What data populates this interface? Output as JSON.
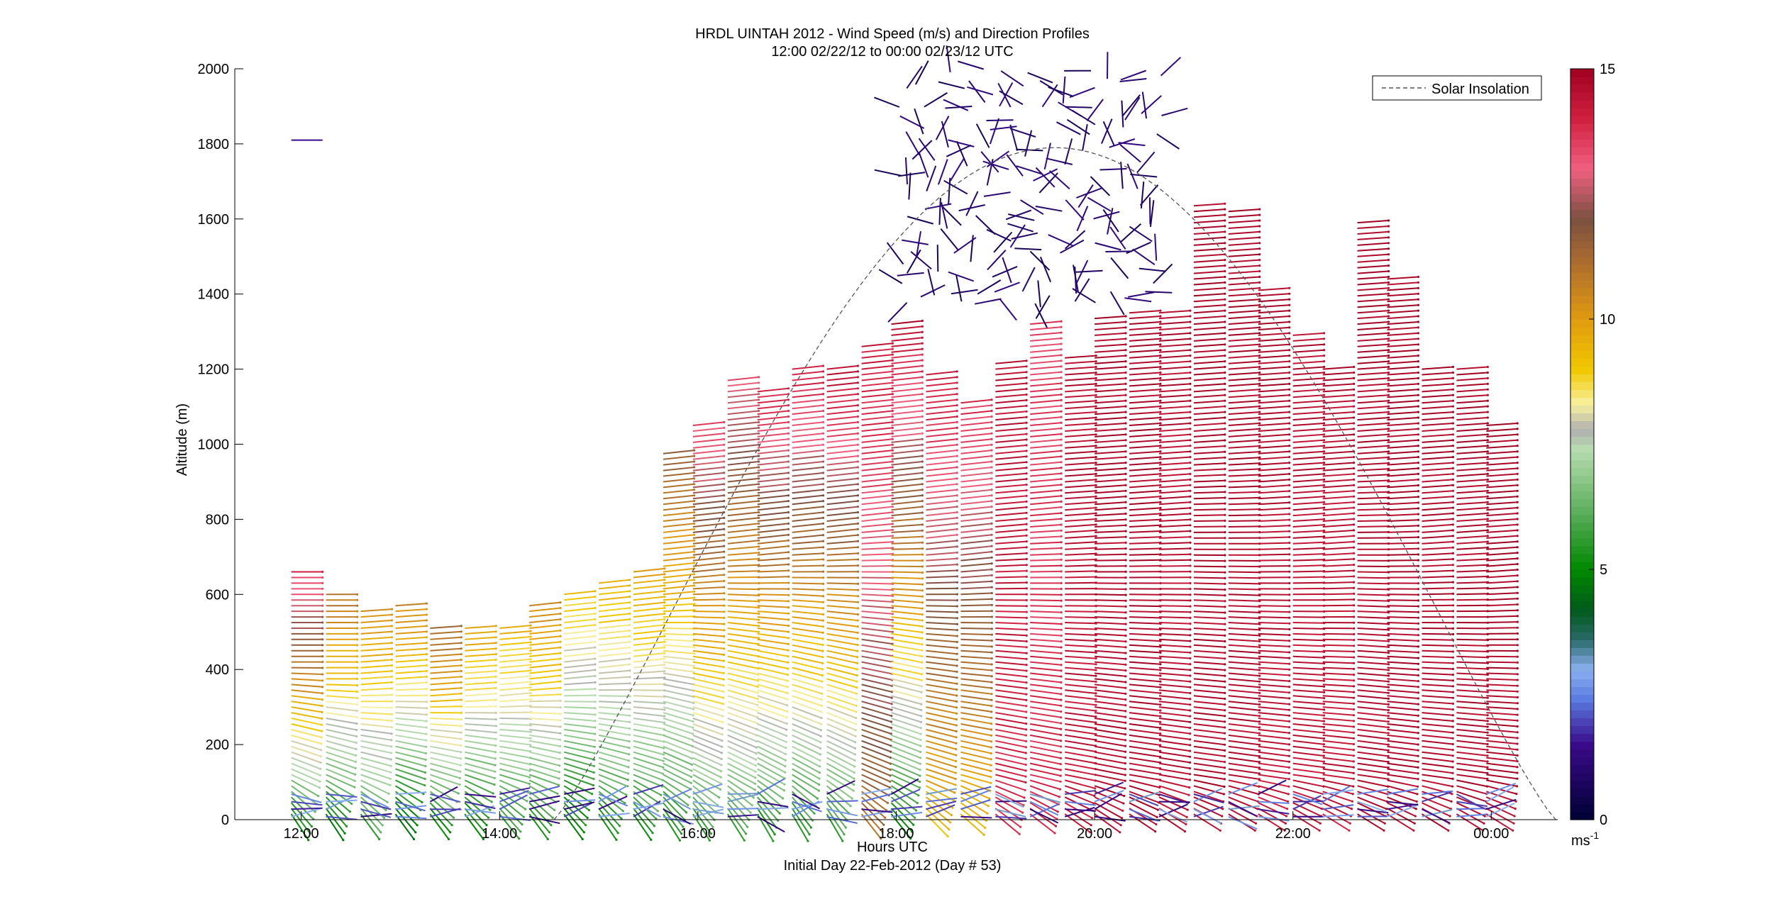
{
  "chart_data": {
    "type": "wind-barb-profile",
    "title": "HRDL UINTAH 2012 - Wind Speed (m/s) and Direction Profiles",
    "subtitle": "12:00 02/22/12 to 00:00 02/23/12  UTC",
    "xlabel": "Hours UTC",
    "footer": "Initial Day 22-Feb-2012 (Day # 53)",
    "ylabel": "Altitude (m)",
    "xlim_hours": [
      11.33,
      24.67
    ],
    "ylim": [
      0,
      2000
    ],
    "x_ticks": [
      {
        "hour": 12,
        "label": "12:00"
      },
      {
        "hour": 14,
        "label": "14:00"
      },
      {
        "hour": 16,
        "label": "16:00"
      },
      {
        "hour": 18,
        "label": "18:00"
      },
      {
        "hour": 20,
        "label": "20:00"
      },
      {
        "hour": 22,
        "label": "22:00"
      },
      {
        "hour": 24,
        "label": "00:00"
      }
    ],
    "y_ticks": [
      0,
      200,
      400,
      600,
      800,
      1000,
      1200,
      1400,
      1600,
      1800,
      2000
    ],
    "legend": {
      "label": "Solar Insolation",
      "placement": "top-right",
      "style": "dashed"
    },
    "solar_insolation": {
      "sunrise_hour": 14.55,
      "sunset_hour": 24.65,
      "peak_altitude_equiv": 1790,
      "peak_hour": 19.6
    },
    "colorbar": {
      "min": 0,
      "max": 15,
      "ticks": [
        0,
        5,
        10,
        15
      ],
      "unit_label": "ms",
      "unit_exponent": "-1",
      "stops": [
        {
          "v": 0,
          "c": "#000033"
        },
        {
          "v": 1.5,
          "c": "#3a0a8a"
        },
        {
          "v": 2.4,
          "c": "#5a7ae0"
        },
        {
          "v": 3.0,
          "c": "#8ab0f0"
        },
        {
          "v": 3.6,
          "c": "#2a6a6a"
        },
        {
          "v": 4.2,
          "c": "#005a1a"
        },
        {
          "v": 5.0,
          "c": "#008800"
        },
        {
          "v": 6.2,
          "c": "#60b060"
        },
        {
          "v": 7.4,
          "c": "#b8dcb0"
        },
        {
          "v": 7.8,
          "c": "#b0b0b0"
        },
        {
          "v": 8.3,
          "c": "#f8f0a0"
        },
        {
          "v": 9.0,
          "c": "#f0c800"
        },
        {
          "v": 10.0,
          "c": "#e09a10"
        },
        {
          "v": 11.2,
          "c": "#a86a30"
        },
        {
          "v": 12.0,
          "c": "#7a5040"
        },
        {
          "v": 13.0,
          "c": "#f06080"
        },
        {
          "v": 14.0,
          "c": "#d02040"
        },
        {
          "v": 15.0,
          "c": "#a00020"
        }
      ]
    },
    "profiles": [
      {
        "hour": 11.9,
        "top": 660,
        "speed_low": 4.6,
        "speed_high": 13.8,
        "dir_low": 35,
        "dir_high": 0
      },
      {
        "hour": 12.25,
        "top": 600,
        "speed_low": 4.6,
        "speed_high": 11.0,
        "dir_low": 35,
        "dir_high": 0
      },
      {
        "hour": 12.6,
        "top": 565,
        "speed_low": 5.5,
        "speed_high": 10.5,
        "dir_low": 32,
        "dir_high": -4
      },
      {
        "hour": 12.95,
        "top": 580,
        "speed_low": 4.2,
        "speed_high": 10.5,
        "dir_low": 32,
        "dir_high": -4
      },
      {
        "hour": 13.3,
        "top": 520,
        "speed_low": 4.6,
        "speed_high": 11.5,
        "dir_low": 32,
        "dir_high": -4
      },
      {
        "hour": 13.65,
        "top": 520,
        "speed_low": 4.6,
        "speed_high": 10.0,
        "dir_low": 32,
        "dir_high": -4
      },
      {
        "hour": 14.0,
        "top": 520,
        "speed_low": 5.2,
        "speed_high": 9.5,
        "dir_low": 30,
        "dir_high": -5
      },
      {
        "hour": 14.3,
        "top": 580,
        "speed_low": 5.0,
        "speed_high": 10.5,
        "dir_low": 32,
        "dir_high": -6
      },
      {
        "hour": 14.65,
        "top": 610,
        "speed_low": 4.6,
        "speed_high": 9.2,
        "dir_low": 32,
        "dir_high": -6
      },
      {
        "hour": 15.0,
        "top": 640,
        "speed_low": 5.0,
        "speed_high": 9.5,
        "dir_low": 34,
        "dir_high": -6
      },
      {
        "hour": 15.35,
        "top": 660,
        "speed_low": 5.2,
        "speed_high": 9.8,
        "dir_low": 34,
        "dir_high": -6
      },
      {
        "hour": 15.65,
        "top": 980,
        "speed_low": 5.0,
        "speed_high": 11.5,
        "dir_low": 36,
        "dir_high": -6
      },
      {
        "hour": 15.95,
        "top": 1060,
        "speed_low": 5.4,
        "speed_high": 13.5,
        "dir_low": 36,
        "dir_high": -6
      },
      {
        "hour": 16.3,
        "top": 1180,
        "speed_low": 5.6,
        "speed_high": 13.2,
        "dir_low": 36,
        "dir_high": -6
      },
      {
        "hour": 16.6,
        "top": 1150,
        "speed_low": 5.0,
        "speed_high": 14.0,
        "dir_low": 38,
        "dir_high": -6
      },
      {
        "hour": 16.95,
        "top": 1210,
        "speed_low": 5.0,
        "speed_high": 14.2,
        "dir_low": 38,
        "dir_high": -6
      },
      {
        "hour": 17.3,
        "top": 1210,
        "speed_low": 5.2,
        "speed_high": 14.5,
        "dir_low": 38,
        "dir_high": -6
      },
      {
        "hour": 17.65,
        "top": 1270,
        "speed_low": 11.0,
        "speed_high": 14.2,
        "dir_low": 30,
        "dir_high": -6
      },
      {
        "hour": 17.95,
        "top": 1320,
        "speed_low": 4.8,
        "speed_high": 14.5,
        "dir_low": 30,
        "dir_high": -6
      },
      {
        "hour": 18.3,
        "top": 1190,
        "speed_low": 9.0,
        "speed_high": 14.2,
        "dir_low": 24,
        "dir_high": -6
      },
      {
        "hour": 18.65,
        "top": 1120,
        "speed_low": 9.0,
        "speed_high": 13.8,
        "dir_low": 20,
        "dir_high": -6
      },
      {
        "hour": 19.0,
        "top": 1220,
        "speed_low": 13.8,
        "speed_high": 14.5,
        "dir_low": 18,
        "dir_high": -5
      },
      {
        "hour": 19.35,
        "top": 1320,
        "speed_low": 14.0,
        "speed_high": 13.5,
        "dir_low": 16,
        "dir_high": -5
      },
      {
        "hour": 19.7,
        "top": 1230,
        "speed_low": 14.2,
        "speed_high": 14.6,
        "dir_low": 14,
        "dir_high": -4
      },
      {
        "hour": 20.0,
        "top": 1340,
        "speed_low": 14.5,
        "speed_high": 14.8,
        "dir_low": 14,
        "dir_high": -4
      },
      {
        "hour": 20.35,
        "top": 1350,
        "speed_low": 14.6,
        "speed_high": 14.8,
        "dir_low": 12,
        "dir_high": -4
      },
      {
        "hour": 20.65,
        "top": 1350,
        "speed_low": 14.4,
        "speed_high": 14.6,
        "dir_low": 12,
        "dir_high": -4
      },
      {
        "hour": 21.0,
        "top": 1640,
        "speed_low": 14.6,
        "speed_high": 14.8,
        "dir_low": 10,
        "dir_high": -4
      },
      {
        "hour": 21.35,
        "top": 1630,
        "speed_low": 14.5,
        "speed_high": 14.8,
        "dir_low": 10,
        "dir_high": -4
      },
      {
        "hour": 21.65,
        "top": 1420,
        "speed_low": 14.2,
        "speed_high": 14.8,
        "dir_low": 10,
        "dir_high": -4
      },
      {
        "hour": 22.0,
        "top": 1300,
        "speed_low": 14.3,
        "speed_high": 14.6,
        "dir_low": 10,
        "dir_high": -4
      },
      {
        "hour": 22.3,
        "top": 1200,
        "speed_low": 14.2,
        "speed_high": 14.6,
        "dir_low": 10,
        "dir_high": -4
      },
      {
        "hour": 22.65,
        "top": 1600,
        "speed_low": 14.5,
        "speed_high": 14.8,
        "dir_low": 10,
        "dir_high": -4
      },
      {
        "hour": 22.95,
        "top": 1440,
        "speed_low": 14.6,
        "speed_high": 14.8,
        "dir_low": 10,
        "dir_high": -4
      },
      {
        "hour": 23.3,
        "top": 1210,
        "speed_low": 14.5,
        "speed_high": 14.8,
        "dir_low": 10,
        "dir_high": -4
      },
      {
        "hour": 23.65,
        "top": 1210,
        "speed_low": 14.6,
        "speed_high": 14.8,
        "dir_low": 10,
        "dir_high": -4
      },
      {
        "hour": 23.95,
        "top": 1050,
        "speed_low": 14.6,
        "speed_high": 14.8,
        "dir_low": 10,
        "dir_high": -4
      }
    ],
    "upper_barbs_speed_ms": 0.6,
    "upper_barbs_range": {
      "hour_start": 18.0,
      "hour_end": 20.6,
      "alt_low": 1370,
      "alt_high": 2000
    }
  }
}
